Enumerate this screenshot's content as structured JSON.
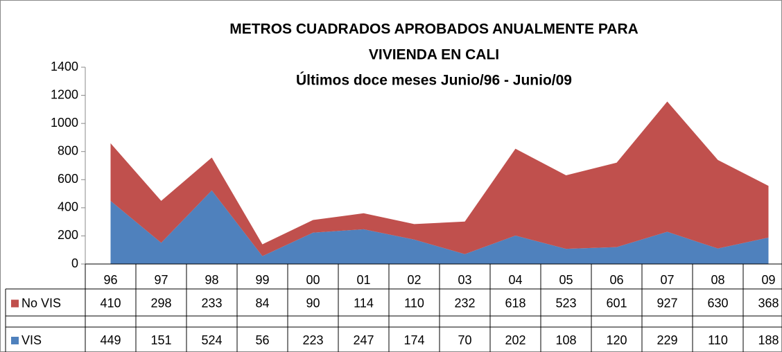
{
  "chart_data": {
    "type": "stacked_area",
    "title": [
      "METROS CUADRADOS APROBADOS ANUALMENTE PARA",
      "VIVIENDA EN CALI"
    ],
    "subtitle": "Últimos doce meses Junio/96 - Junio/09",
    "categories": [
      "96",
      "97",
      "98",
      "99",
      "00",
      "01",
      "02",
      "03",
      "04",
      "05",
      "06",
      "07",
      "08",
      "09"
    ],
    "series": [
      {
        "name": "No VIS",
        "color": "#c0504d",
        "values": [
          410,
          298,
          233,
          84,
          90,
          114,
          110,
          232,
          618,
          523,
          601,
          927,
          630,
          368
        ]
      },
      {
        "name": "VIS",
        "color": "#4f81bd",
        "values": [
          449,
          151,
          524,
          56,
          223,
          247,
          174,
          70,
          202,
          108,
          120,
          229,
          110,
          188
        ]
      }
    ],
    "ylim": [
      0,
      1400
    ],
    "yticks": [
      0,
      200,
      400,
      600,
      800,
      1000,
      1200,
      1400
    ]
  }
}
